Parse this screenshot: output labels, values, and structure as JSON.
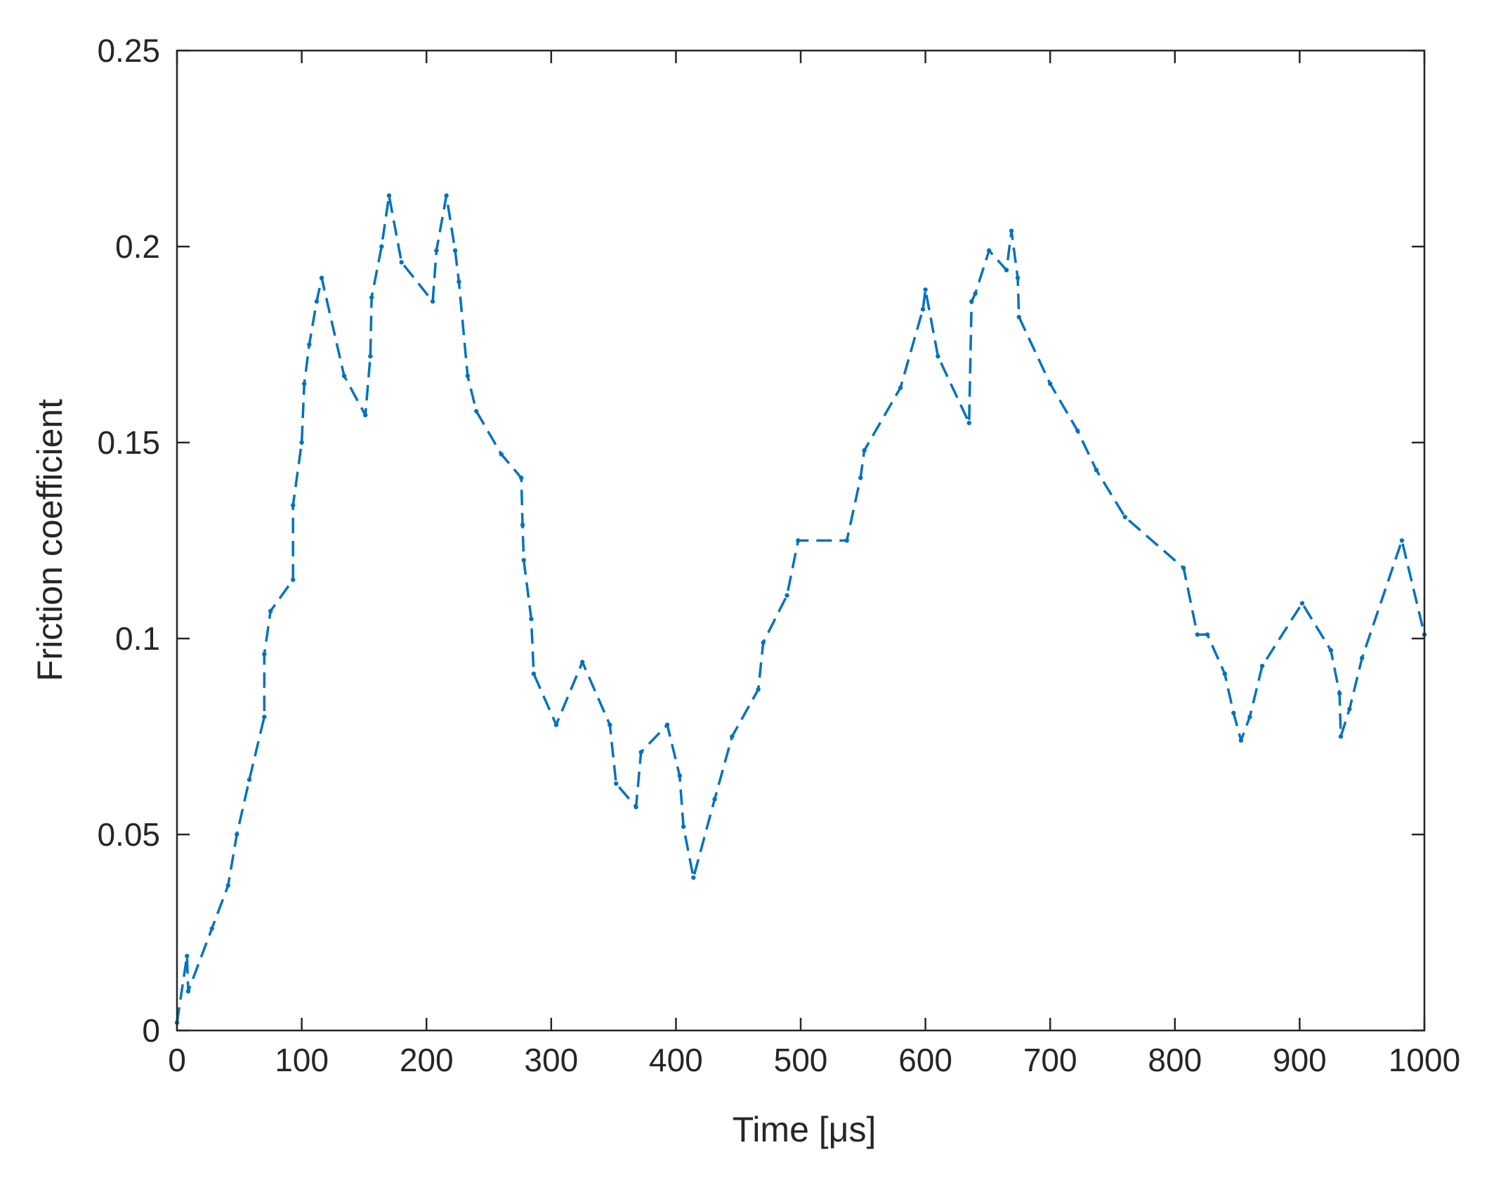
{
  "chart_data": {
    "type": "line",
    "title": "",
    "xlabel": "Time [μs]",
    "ylabel": "Friction coefficient",
    "xlim": [
      0,
      1000
    ],
    "ylim": [
      0,
      0.25
    ],
    "xticks": [
      0,
      100,
      200,
      300,
      400,
      500,
      600,
      700,
      800,
      900,
      1000
    ],
    "yticks": [
      0,
      0.05,
      0.1,
      0.15,
      0.2,
      0.25
    ],
    "xtick_labels": [
      "0",
      "100",
      "200",
      "300",
      "400",
      "500",
      "600",
      "700",
      "800",
      "900",
      "1000"
    ],
    "ytick_labels": [
      "0",
      "0.05",
      "0.1",
      "0.15",
      "0.2",
      "0.25"
    ],
    "grid": false,
    "line_style": "dashed",
    "marker": "point",
    "color": "#0072BD",
    "series": [
      {
        "x": [
          0,
          8,
          9,
          28,
          41,
          48,
          58,
          70,
          70,
          75,
          93,
          93,
          100,
          102,
          106,
          112,
          116,
          134,
          151,
          155,
          156,
          164,
          170,
          180,
          205,
          208,
          216,
          223,
          226,
          233,
          240,
          260,
          276,
          277,
          278,
          284,
          286,
          304,
          325,
          347,
          352,
          368,
          372,
          393,
          403,
          406,
          414,
          431,
          445,
          466,
          470,
          489,
          498,
          537,
          548,
          551,
          580,
          598,
          600,
          610,
          635,
          637,
          640,
          651,
          665,
          669,
          674,
          675,
          700,
          722,
          737,
          760,
          807,
          818,
          826,
          840,
          847,
          853,
          860,
          870,
          902,
          925,
          932,
          933,
          940,
          950,
          982,
          1000
        ],
        "y": [
          0.002,
          0.019,
          0.01,
          0.026,
          0.037,
          0.05,
          0.064,
          0.08,
          0.096,
          0.107,
          0.115,
          0.134,
          0.15,
          0.165,
          0.175,
          0.186,
          0.192,
          0.167,
          0.157,
          0.172,
          0.187,
          0.2,
          0.213,
          0.196,
          0.186,
          0.199,
          0.213,
          0.199,
          0.191,
          0.167,
          0.158,
          0.147,
          0.141,
          0.129,
          0.12,
          0.105,
          0.091,
          0.078,
          0.094,
          0.078,
          0.063,
          0.057,
          0.071,
          0.078,
          0.065,
          0.052,
          0.039,
          0.059,
          0.075,
          0.087,
          0.099,
          0.111,
          0.125,
          0.125,
          0.141,
          0.148,
          0.164,
          0.184,
          0.189,
          0.172,
          0.155,
          0.186,
          0.188,
          0.199,
          0.194,
          0.204,
          0.192,
          0.182,
          0.165,
          0.153,
          0.143,
          0.131,
          0.118,
          0.101,
          0.101,
          0.091,
          0.081,
          0.074,
          0.08,
          0.093,
          0.109,
          0.097,
          0.086,
          0.075,
          0.082,
          0.095,
          0.125,
          0.101
        ]
      }
    ]
  }
}
